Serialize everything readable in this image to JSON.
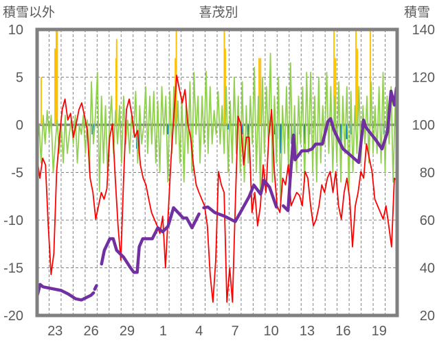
{
  "chart_data": {
    "type": "line",
    "title": "喜茂別",
    "ylabel_left": "積雪以外",
    "ylabel_right": "積雪",
    "ylim_left": [
      -20,
      10
    ],
    "ylim_right": [
      20,
      140
    ],
    "yticks_left": [
      "10",
      "5",
      "0",
      "-5",
      "-10",
      "-15",
      "-20"
    ],
    "yticks_right": [
      "140",
      "120",
      "100",
      "80",
      "60",
      "40",
      "20"
    ],
    "xlim_days": [
      0,
      30
    ],
    "xticks": [
      {
        "day": 1,
        "label": "23"
      },
      {
        "day": 4,
        "label": "26"
      },
      {
        "day": 7,
        "label": "29"
      },
      {
        "day": 10,
        "label": "1"
      },
      {
        "day": 13,
        "label": "4"
      },
      {
        "day": 16,
        "label": "7"
      },
      {
        "day": 19,
        "label": "10"
      },
      {
        "day": 22,
        "label": "13"
      },
      {
        "day": 25,
        "label": "16"
      },
      {
        "day": 28,
        "label": "19"
      }
    ],
    "grid": true,
    "colors": {
      "red": "#ff0000",
      "green": "#92d050",
      "purple": "#7030a0",
      "orange": "#ffc000",
      "blue": "#0070c0",
      "frame": "#808080"
    },
    "series": [
      {
        "name": "green",
        "axis": "left",
        "x_start": 0,
        "x_end": 30,
        "values": [
          -3,
          0,
          -4,
          1,
          -2,
          1.5,
          -1,
          1,
          -5,
          -2,
          0.5,
          -3,
          0,
          -4,
          1,
          -3,
          -1,
          0.5,
          -2,
          1,
          -4,
          0,
          -1,
          1,
          -3,
          0.5,
          -5,
          4.5,
          -2,
          1,
          5.5,
          -7,
          3,
          -4,
          2,
          -5,
          0,
          3,
          -3,
          1.5,
          -2,
          2,
          -4,
          3,
          -2,
          0.5,
          -3,
          1,
          -1,
          3.5,
          -4,
          2,
          -2,
          0,
          4,
          -3,
          3,
          -2,
          3.5,
          -4,
          2.5,
          -5,
          4,
          -1,
          3,
          -6,
          3.5,
          -3,
          4,
          -2,
          2.5,
          -4,
          3,
          -6,
          2,
          -3,
          4.5,
          -5,
          5.5,
          -1,
          3,
          -4,
          3,
          -2,
          5.6,
          -3,
          4,
          -2,
          1.5,
          -1,
          3.5,
          -2,
          2,
          -3,
          4,
          -5,
          2.5,
          -4,
          5,
          -3,
          3,
          -5,
          4.5,
          -6,
          2,
          -4,
          3,
          -2,
          6,
          -5,
          3,
          -7,
          5,
          -3,
          4,
          -2,
          7.5,
          -6,
          3,
          -4,
          5,
          -8,
          2,
          -3,
          4,
          -5,
          6.5,
          -4,
          2,
          -5,
          3,
          -2,
          4,
          -6,
          5.5,
          -3,
          5.5,
          -5,
          3,
          -6,
          5,
          -4,
          2,
          -2,
          5.5,
          -3,
          4,
          -5,
          3,
          -4,
          4.5,
          -6,
          3,
          -3,
          4,
          -7,
          3.5,
          -5,
          2,
          -3,
          4,
          -4,
          2,
          -2,
          3,
          -4,
          4.5,
          -3,
          2,
          -3,
          4,
          -4,
          5.5,
          -5,
          3,
          -2,
          4,
          -6,
          2,
          -3
        ]
      },
      {
        "name": "red",
        "axis": "left",
        "x_start": 0,
        "x_end": 30,
        "values": [
          -3.5,
          -5.6,
          -3.5,
          -4.2,
          -10.6,
          -15.7,
          -13.5,
          -4.9,
          -1.3,
          1.6,
          2.7,
          0.5,
          1.2,
          -1.3,
          0.1,
          1.6,
          2.3,
          0.9,
          -0.6,
          -5.6,
          -7.1,
          -9.9,
          -8.5,
          -7.1,
          -7.8,
          -6.7,
          -1.3,
          0.1,
          -5.6,
          -10.6,
          -14.2,
          -5.6,
          1.6,
          2.7,
          0.9,
          -1.3,
          -0.6,
          -4.2,
          -5.6,
          -6.3,
          -7.8,
          -9.2,
          -9.9,
          -10.6,
          -11.4,
          -9.6,
          -15.0,
          -9.2,
          -3.5,
          0.9,
          5.2,
          3.7,
          2.3,
          3.7,
          0.1,
          -1.3,
          -4.2,
          -6.3,
          -7.1,
          -7.8,
          -8.5,
          -10.6,
          -15.7,
          -18.6,
          -14.2,
          -4.9,
          -6.3,
          -7.1,
          -18.6,
          -15.0,
          -18.6,
          -8.5,
          0.9,
          0.1,
          -4.2,
          -1.3,
          -1.3,
          -9.2,
          -7.1,
          -10.6,
          -8.5,
          -4.2,
          -7.1,
          -1.3,
          1.6,
          -4.9,
          -8.5,
          -9.2,
          -5.6,
          -6.3,
          -4.2,
          -8.5,
          -7.8,
          -7.1,
          -7.4,
          -8.5,
          -4.9,
          -5.6,
          -8.5,
          -10.6,
          -9.9,
          -8.5,
          -6.3,
          -7.1,
          -5.6,
          -4.9,
          -7.1,
          -4.9,
          -8.5,
          -9.9,
          -7.1,
          -5.6,
          -7.8,
          -12.8,
          -8.5,
          -7.1,
          -4.9,
          -5.6,
          -2.0,
          -3.5,
          -4.9,
          -7.8,
          -8.5,
          -9.2,
          -9.9,
          -8.5,
          -10.6,
          -12.8,
          -5.6,
          -5.9
        ]
      },
      {
        "name": "purple",
        "axis": "right",
        "segments": [
          [
            [
              0,
              28
            ],
            [
              0.25,
              33
            ],
            [
              0.5,
              32
            ],
            [
              1,
              31.5
            ],
            [
              2,
              30.5
            ],
            [
              2.6,
              29
            ],
            [
              3.2,
              27
            ],
            [
              3.7,
              26.5
            ],
            [
              4.1,
              27.5
            ],
            [
              4.5,
              28.5
            ],
            [
              4.7,
              29.5
            ]
          ],
          [
            [
              4.8,
              31
            ],
            [
              4.95,
              32.5
            ]
          ],
          [
            [
              5.37,
              41.6
            ],
            [
              5.6,
              47.3
            ],
            [
              6.06,
              52.2
            ],
            [
              6.34,
              52.2
            ],
            [
              6.63,
              47.3
            ],
            [
              7.2,
              44.5
            ],
            [
              7.77,
              40.1
            ],
            [
              8.06,
              38.1
            ],
            [
              8.34,
              38.1
            ],
            [
              8.51,
              48.8
            ],
            [
              8.8,
              52.2
            ],
            [
              9.6,
              52.2
            ],
            [
              10.06,
              56.8
            ],
            [
              10.46,
              55.1
            ],
            [
              10.91,
              57.4
            ],
            [
              11.37,
              65.2
            ],
            [
              12.17,
              60.9
            ],
            [
              12.46,
              60.9
            ],
            [
              12.91,
              56.8
            ],
            [
              13.49,
              62.6
            ]
          ],
          [
            [
              13.89,
              65.2
            ],
            [
              14.23,
              65.5
            ],
            [
              14.8,
              63.2
            ],
            [
              15.6,
              61.7
            ],
            [
              16.51,
              59.4
            ],
            [
              17.09,
              64.6
            ],
            [
              17.66,
              69.8
            ],
            [
              18.06,
              74.7
            ],
            [
              18.63,
              70.9
            ],
            [
              18.91,
              76.7
            ],
            [
              19.37,
              73.8
            ],
            [
              19.94,
              65.5
            ]
          ],
          [
            [
              20.51,
              66
            ],
            [
              20.91,
              64
            ],
            [
              21.09,
              77.6
            ],
            [
              21.37,
              95.7
            ],
            [
              21.49,
              85.3
            ],
            [
              22.06,
              89.1
            ],
            [
              22.51,
              89.1
            ],
            [
              22.91,
              89.9
            ],
            [
              23.2,
              91.9
            ],
            [
              23.77,
              91.9
            ],
            [
              24.23,
              101.4
            ],
            [
              24.46,
              102.6
            ],
            [
              24.74,
              97.7
            ],
            [
              25.49,
              89.9
            ],
            [
              25.89,
              88.2
            ],
            [
              26.8,
              84.2
            ],
            [
              27.2,
              102
            ],
            [
              27.37,
              99.1
            ],
            [
              28.17,
              94
            ],
            [
              28.74,
              89.9
            ],
            [
              29.2,
              97.1
            ],
            [
              29.49,
              114.1
            ],
            [
              29.77,
              108.3
            ],
            [
              29.94,
              115.5
            ]
          ]
        ]
      },
      {
        "name": "orange-bars",
        "axis": "left",
        "type": "bar",
        "points": [
          [
            0.34,
            5
          ],
          [
            1.49,
            8
          ],
          [
            1.6,
            10
          ],
          [
            1.68,
            10
          ],
          [
            6.63,
            9
          ],
          [
            6.58,
            7
          ],
          [
            11.6,
            10
          ],
          [
            11.52,
            7
          ],
          [
            15.6,
            10
          ],
          [
            15.68,
            8
          ],
          [
            18.5,
            7
          ],
          [
            18.62,
            7
          ],
          [
            24.74,
            10
          ],
          [
            24.86,
            7
          ],
          [
            26.57,
            10
          ],
          [
            26.69,
            8
          ],
          [
            27.77,
            10
          ]
        ]
      },
      {
        "name": "blue-bars",
        "axis": "left",
        "type": "bar",
        "points": [
          [
            0.1,
            -0.5
          ],
          [
            4.6,
            -1
          ],
          [
            4.7,
            -0.8
          ],
          [
            8.3,
            -2.5
          ],
          [
            8.5,
            -3
          ],
          [
            10.9,
            -1
          ],
          [
            11.6,
            -0.5
          ],
          [
            15.9,
            -0.5
          ],
          [
            17.1,
            -1
          ],
          [
            17.6,
            -2.5
          ],
          [
            19.8,
            -1
          ],
          [
            20.0,
            -1.5
          ],
          [
            20.3,
            -3
          ],
          [
            20.9,
            -1.5
          ],
          [
            21.2,
            -2
          ],
          [
            21.5,
            -3
          ],
          [
            21.9,
            -1
          ],
          [
            22.3,
            -2
          ],
          [
            22.7,
            -1
          ],
          [
            24.9,
            -1
          ],
          [
            25.3,
            -2.5
          ],
          [
            25.8,
            -1.5
          ],
          [
            26.2,
            -1
          ],
          [
            27.2,
            -0.5
          ],
          [
            28.9,
            -1
          ]
        ]
      }
    ]
  }
}
